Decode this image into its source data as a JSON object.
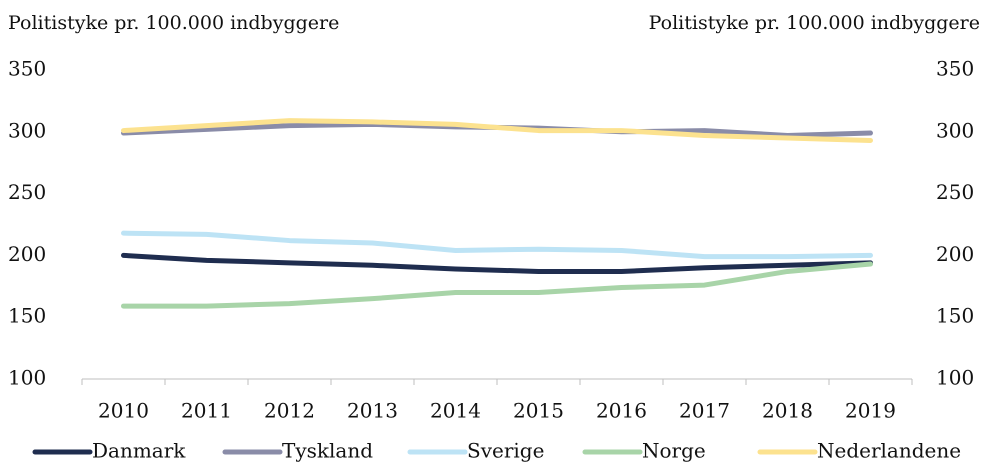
{
  "chart_data": {
    "type": "line",
    "y_label": "Politistyke pr. 100.000 indbyggere",
    "y2_label": "Politistyke pr. 100.000 indbyggere",
    "categories": [
      "2010",
      "2011",
      "2012",
      "2013",
      "2014",
      "2015",
      "2016",
      "2017",
      "2018",
      "2019"
    ],
    "series": [
      {
        "name": "Danmark",
        "color": "#1f2d4f",
        "values": [
          200,
          196,
          194,
          192,
          189,
          187,
          187,
          190,
          192,
          194
        ]
      },
      {
        "name": "Tyskland",
        "color": "#8a8ca8",
        "values": [
          299,
          302,
          305,
          306,
          304,
          303,
          300,
          301,
          297,
          299
        ]
      },
      {
        "name": "Sverige",
        "color": "#bde3f5",
        "values": [
          218,
          217,
          212,
          210,
          204,
          205,
          204,
          199,
          199,
          200
        ]
      },
      {
        "name": "Norge",
        "color": "#a8d4a8",
        "values": [
          159,
          159,
          161,
          165,
          170,
          170,
          174,
          176,
          187,
          193
        ]
      },
      {
        "name": "Nederlandene",
        "color": "#fce28f",
        "values": [
          301,
          305,
          309,
          308,
          306,
          301,
          301,
          297,
          295,
          293
        ]
      }
    ],
    "ylim": [
      100,
      350
    ],
    "yticks": [
      100,
      150,
      200,
      250,
      300,
      350
    ],
    "y2lim": [
      100,
      350
    ],
    "y2ticks": [
      100,
      150,
      200,
      250,
      300,
      350
    ],
    "grid": false
  }
}
